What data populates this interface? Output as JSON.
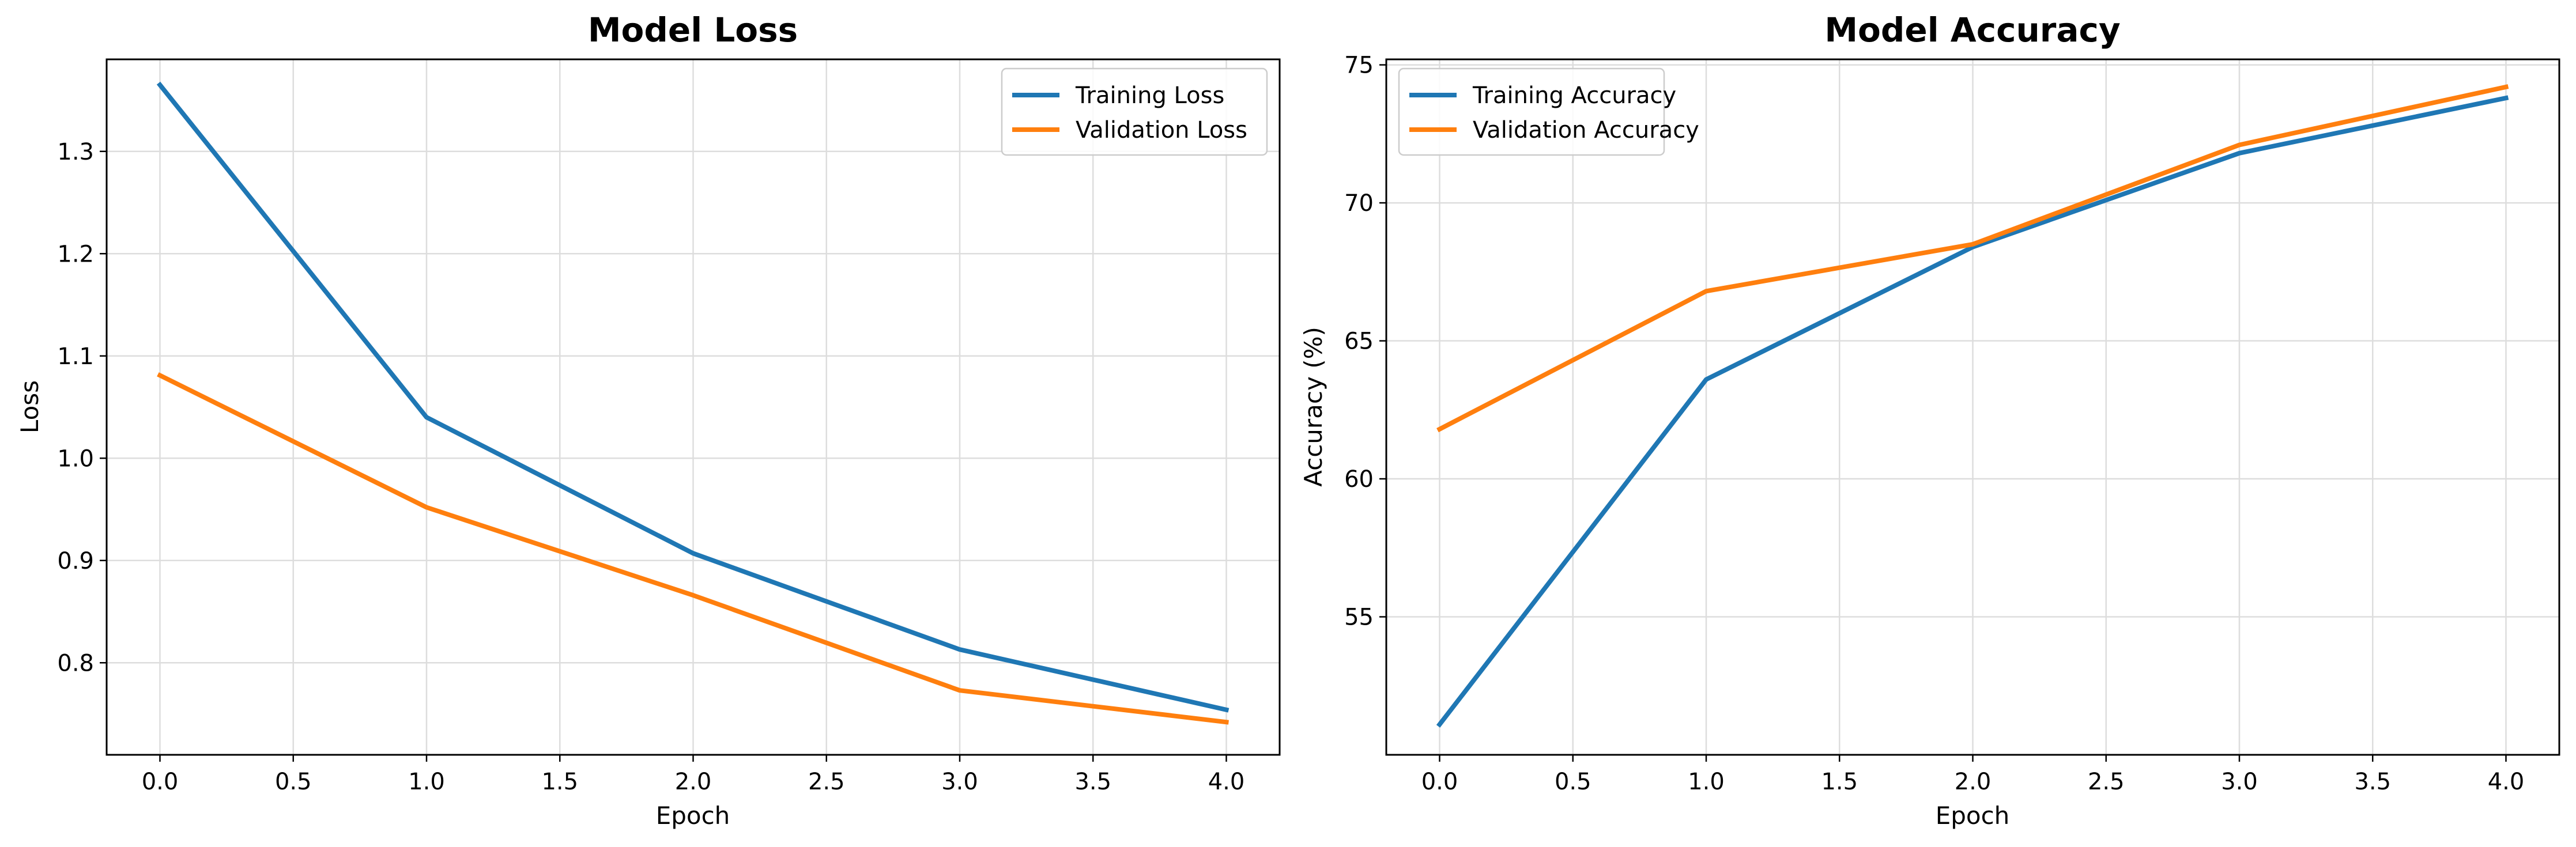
{
  "chart_data": [
    {
      "type": "line",
      "title": "Model Loss",
      "xlabel": "Epoch",
      "ylabel": "Loss",
      "x": [
        0,
        1,
        2,
        3,
        4
      ],
      "xlim": [
        -0.2,
        4.2
      ],
      "ylim": [
        0.71,
        1.39
      ],
      "xticks": [
        0.0,
        0.5,
        1.0,
        1.5,
        2.0,
        2.5,
        3.0,
        3.5,
        4.0
      ],
      "xtick_labels": [
        "0.0",
        "0.5",
        "1.0",
        "1.5",
        "2.0",
        "2.5",
        "3.0",
        "3.5",
        "4.0"
      ],
      "yticks": [
        0.8,
        0.9,
        1.0,
        1.1,
        1.2,
        1.3
      ],
      "ytick_labels": [
        "0.8",
        "0.9",
        "1.0",
        "1.1",
        "1.2",
        "1.3"
      ],
      "grid": true,
      "legend_position": "top-right",
      "series": [
        {
          "name": "Training Loss",
          "color": "#1f77b4",
          "values": [
            1.365,
            1.04,
            0.907,
            0.813,
            0.754
          ]
        },
        {
          "name": "Validation Loss",
          "color": "#ff7f0e",
          "values": [
            1.081,
            0.952,
            0.866,
            0.773,
            0.742
          ]
        }
      ]
    },
    {
      "type": "line",
      "title": "Model Accuracy",
      "xlabel": "Epoch",
      "ylabel": "Accuracy (%)",
      "x": [
        0,
        1,
        2,
        3,
        4
      ],
      "xlim": [
        -0.2,
        4.2
      ],
      "ylim": [
        50.0,
        75.2
      ],
      "xticks": [
        0.0,
        0.5,
        1.0,
        1.5,
        2.0,
        2.5,
        3.0,
        3.5,
        4.0
      ],
      "xtick_labels": [
        "0.0",
        "0.5",
        "1.0",
        "1.5",
        "2.0",
        "2.5",
        "3.0",
        "3.5",
        "4.0"
      ],
      "yticks": [
        55,
        60,
        65,
        70,
        75
      ],
      "ytick_labels": [
        "55",
        "60",
        "65",
        "70",
        "75"
      ],
      "grid": true,
      "legend_position": "top-left",
      "series": [
        {
          "name": "Training Accuracy",
          "color": "#1f77b4",
          "values": [
            51.1,
            63.6,
            68.4,
            71.8,
            73.8
          ]
        },
        {
          "name": "Validation Accuracy",
          "color": "#ff7f0e",
          "values": [
            61.8,
            66.8,
            68.5,
            72.1,
            74.2
          ]
        }
      ]
    }
  ]
}
